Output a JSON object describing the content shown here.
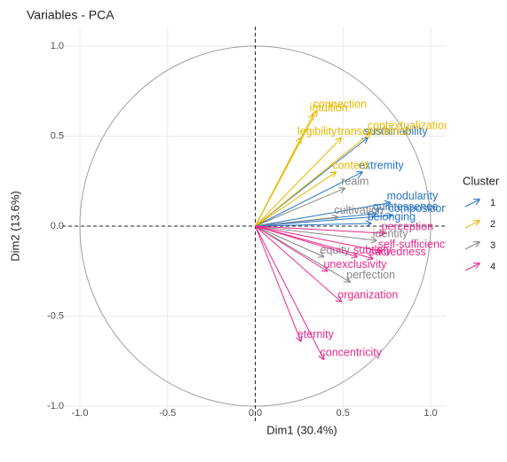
{
  "chart_data": {
    "type": "pca-vectors",
    "title": "Variables - PCA",
    "x_label": "Dim1 (30.4%)",
    "y_label": "Dim2 (13.6%)",
    "legend_title": "Cluster",
    "xlim": [
      -1.0,
      1.0
    ],
    "ylim": [
      -1.0,
      1.0
    ],
    "xticks": [
      {
        "value": -1,
        "label": "-1.0"
      },
      {
        "value": -0.5,
        "label": "-0.5"
      },
      {
        "value": 0,
        "label": "0.0"
      },
      {
        "value": 0.5,
        "label": "0.5"
      },
      {
        "value": 1,
        "label": "1.0"
      }
    ],
    "yticks": [
      {
        "value": -1,
        "label": "-1.0"
      },
      {
        "value": -0.5,
        "label": "-0.5"
      },
      {
        "value": 0,
        "label": "0.0"
      },
      {
        "value": 0.5,
        "label": "0.5"
      },
      {
        "value": 1,
        "label": "1.0"
      }
    ],
    "grid": true,
    "series": [
      {
        "name": "1",
        "color": "#2874c5",
        "labels": [
          "sustainability",
          "extremity",
          "modularity",
          "quintessence",
          "composition",
          "belonging"
        ],
        "x": [
          0.64,
          0.61,
          0.77,
          0.69,
          0.78,
          0.66
        ],
        "values": [
          0.49,
          0.3,
          0.13,
          0.07,
          0.06,
          0.015
        ]
      },
      {
        "name": "2",
        "color": "#e7b800",
        "labels": [
          "connection",
          "intuition",
          "contextualization",
          "transcendence",
          "legibility",
          "content"
        ],
        "x": [
          0.35,
          0.33,
          0.66,
          0.49,
          0.26,
          0.46
        ],
        "values": [
          0.64,
          0.62,
          0.52,
          0.49,
          0.49,
          0.3
        ]
      },
      {
        "name": "3",
        "color": "#868686",
        "labels": [
          "realm",
          "cultivation",
          "identity",
          "equity",
          "perfection"
        ],
        "x": [
          0.51,
          0.47,
          0.69,
          0.39,
          0.54
        ],
        "values": [
          0.21,
          0.05,
          -0.08,
          -0.17,
          -0.31
        ]
      },
      {
        "name": "4",
        "color": "#e7298a",
        "labels": [
          "perception",
          "self-sufficiency",
          "subtlety",
          "sacredness",
          "unexclusivity",
          "organization",
          "eternity",
          "concentricity"
        ],
        "x": [
          0.74,
          0.72,
          0.58,
          0.67,
          0.41,
          0.49,
          0.26,
          0.39
        ],
        "values": [
          -0.04,
          -0.14,
          -0.17,
          -0.18,
          -0.25,
          -0.42,
          -0.64,
          -0.74
        ]
      }
    ]
  }
}
